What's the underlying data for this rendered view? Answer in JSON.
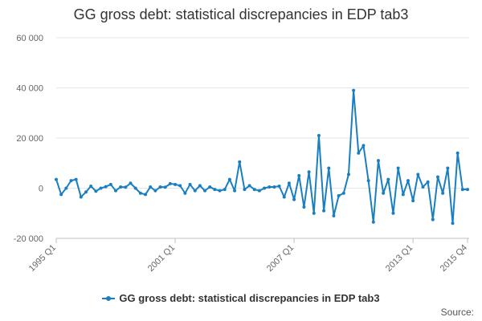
{
  "chart_data": {
    "type": "line",
    "title": "GG gross debt: statistical discrepancies in EDP tab3",
    "xlabel": "",
    "ylabel": "",
    "ylim": [
      -20000,
      60000
    ],
    "yticks": [
      -20000,
      0,
      20000,
      40000,
      60000
    ],
    "ytick_labels": [
      "-20 000",
      "0",
      "20 000",
      "40 000",
      "60 000"
    ],
    "xtick_labels": [
      "1995 Q1",
      "2001 Q1",
      "2007 Q1",
      "2013 Q1",
      "2015 Q4"
    ],
    "xtick_index": [
      0,
      24,
      48,
      72,
      83
    ],
    "grid": true,
    "legend_position": "bottom",
    "color": "#1a7fc1",
    "series": [
      {
        "name": "GG gross debt: statistical discrepancies in EDP tab3",
        "x": [
          "1995 Q1",
          "1995 Q2",
          "1995 Q3",
          "1995 Q4",
          "1996 Q1",
          "1996 Q2",
          "1996 Q3",
          "1996 Q4",
          "1997 Q1",
          "1997 Q2",
          "1997 Q3",
          "1997 Q4",
          "1998 Q1",
          "1998 Q2",
          "1998 Q3",
          "1998 Q4",
          "1999 Q1",
          "1999 Q2",
          "1999 Q3",
          "1999 Q4",
          "2000 Q1",
          "2000 Q2",
          "2000 Q3",
          "2000 Q4",
          "2001 Q1",
          "2001 Q2",
          "2001 Q3",
          "2001 Q4",
          "2002 Q1",
          "2002 Q2",
          "2002 Q3",
          "2002 Q4",
          "2003 Q1",
          "2003 Q2",
          "2003 Q3",
          "2003 Q4",
          "2004 Q1",
          "2004 Q2",
          "2004 Q3",
          "2004 Q4",
          "2005 Q1",
          "2005 Q2",
          "2005 Q3",
          "2005 Q4",
          "2006 Q1",
          "2006 Q2",
          "2006 Q3",
          "2006 Q4",
          "2007 Q1",
          "2007 Q2",
          "2007 Q3",
          "2007 Q4",
          "2008 Q1",
          "2008 Q2",
          "2008 Q3",
          "2008 Q4",
          "2009 Q1",
          "2009 Q2",
          "2009 Q3",
          "2009 Q4",
          "2010 Q1",
          "2010 Q2",
          "2010 Q3",
          "2010 Q4",
          "2011 Q1",
          "2011 Q2",
          "2011 Q3",
          "2011 Q4",
          "2012 Q1",
          "2012 Q2",
          "2012 Q3",
          "2012 Q4",
          "2013 Q1",
          "2013 Q2",
          "2013 Q3",
          "2013 Q4",
          "2014 Q1",
          "2014 Q2",
          "2014 Q3",
          "2014 Q4",
          "2015 Q1",
          "2015 Q2",
          "2015 Q3",
          "2015 Q4"
        ],
        "values": [
          3500,
          -2500,
          0,
          3000,
          3500,
          -3500,
          -1500,
          800,
          -1200,
          0,
          600,
          1500,
          -1000,
          500,
          400,
          2000,
          0,
          -2000,
          -2500,
          500,
          -1000,
          500,
          400,
          1800,
          1500,
          1000,
          -2000,
          1500,
          -1000,
          1000,
          -1000,
          500,
          -500,
          -1000,
          -500,
          3500,
          -1000,
          10500,
          -500,
          1000,
          -500,
          -1000,
          0,
          500,
          500,
          800,
          -3500,
          2000,
          -4500,
          5000,
          -7500,
          6500,
          -10000,
          21000,
          -9000,
          8000,
          -11000,
          -3000,
          -2000,
          5500,
          39000,
          14000,
          17000,
          3000,
          -13500,
          11000,
          -2000,
          3500,
          -10000,
          8000,
          -2500,
          3000,
          -5000,
          5500,
          500,
          2500,
          -12500,
          4500,
          -2000,
          8000,
          -14000,
          14000,
          -500,
          -500
        ]
      }
    ],
    "legend": [
      "GG gross debt: statistical discrepancies in EDP tab3"
    ],
    "source_label": "Source:"
  }
}
